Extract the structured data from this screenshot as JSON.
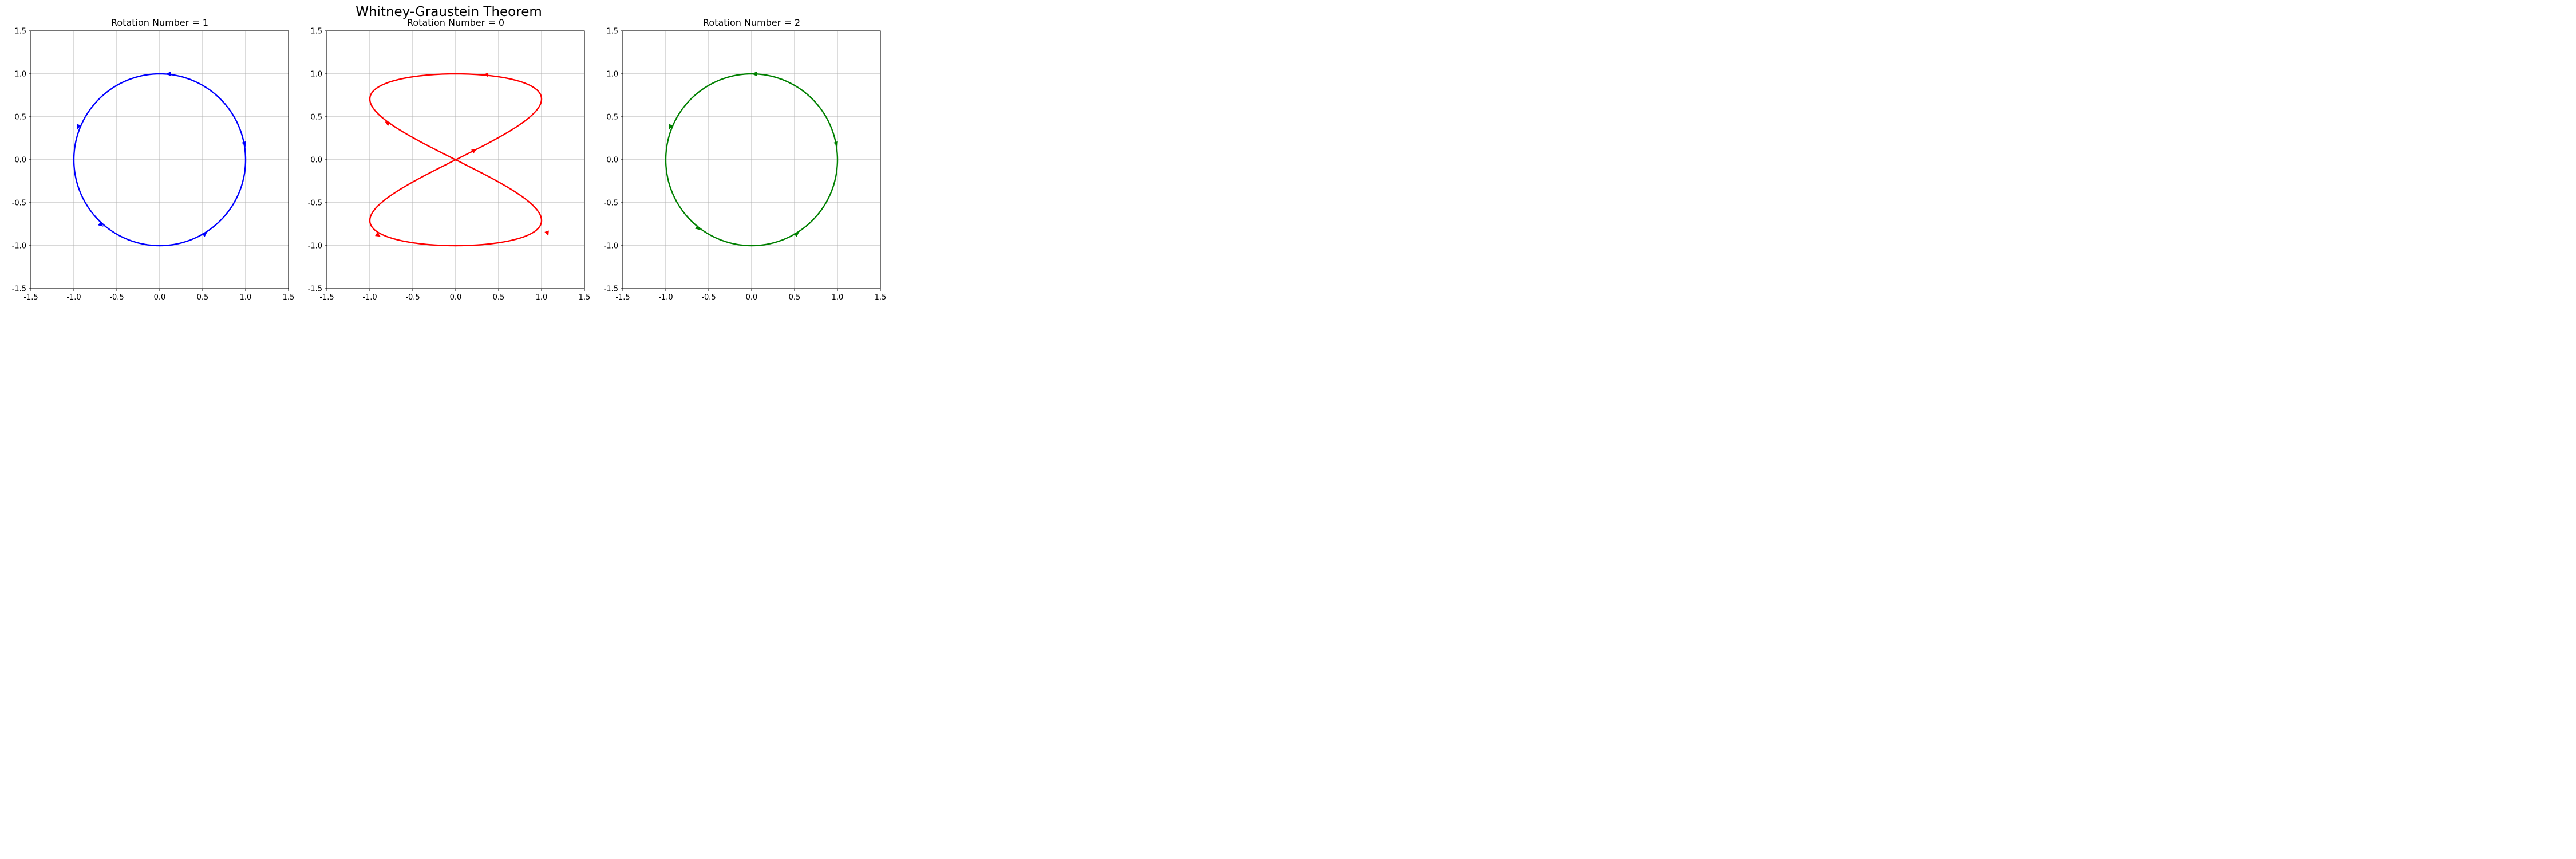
{
  "figure": {
    "title": "Whitney-Graustein Theorem"
  },
  "chart_data": [
    {
      "type": "line",
      "title": "Rotation Number = 1",
      "xlim": [
        -1.5,
        1.5
      ],
      "ylim": [
        -1.5,
        1.5
      ],
      "xticks": [
        "-1.5",
        "-1.0",
        "-0.5",
        "0.0",
        "0.5",
        "1.0",
        "1.5"
      ],
      "yticks": [
        "-1.5",
        "-1.0",
        "-0.5",
        "0.0",
        "0.5",
        "1.0",
        "1.5"
      ],
      "grid": true,
      "color": "#0000ff",
      "curve": "circle",
      "x": [
        1.0,
        0.866,
        0.5,
        0.0,
        -0.5,
        -0.866,
        -1.0,
        -0.866,
        -0.5,
        0.0,
        0.5,
        0.866,
        1.0
      ],
      "y": [
        0.0,
        0.5,
        0.866,
        1.0,
        0.866,
        0.5,
        0.0,
        -0.5,
        -0.866,
        -1.0,
        -0.866,
        -0.5,
        0.0
      ],
      "arrows": [
        {
          "x": 0.99,
          "y": 0.18,
          "dx": 0.02,
          "dy": -0.06
        },
        {
          "x": 0.1,
          "y": 1.0,
          "dx": -0.07,
          "dy": 0.0
        },
        {
          "x": -0.95,
          "y": 0.38,
          "dx": -0.02,
          "dy": -0.06
        },
        {
          "x": -0.68,
          "y": -0.76,
          "dx": 0.05,
          "dy": -0.04
        },
        {
          "x": 0.53,
          "y": -0.86,
          "dx": 0.05,
          "dy": 0.04
        }
      ]
    },
    {
      "type": "line",
      "title": "Rotation Number = 0",
      "xlim": [
        -1.5,
        1.5
      ],
      "ylim": [
        -1.5,
        1.5
      ],
      "xticks": [
        "-1.5",
        "-1.0",
        "-0.5",
        "0.0",
        "0.5",
        "1.0",
        "1.5"
      ],
      "yticks": [
        "-1.5",
        "-1.0",
        "-0.5",
        "0.0",
        "0.5",
        "1.0",
        "1.5"
      ],
      "grid": true,
      "color": "#ff0000",
      "curve": "figure-eight",
      "x": [
        0.0,
        0.707,
        1.0,
        0.707,
        0.0,
        -0.707,
        -1.0,
        -0.707,
        0.0,
        0.707,
        1.0,
        0.707,
        0.0,
        -0.707,
        -1.0,
        -0.707,
        0.0
      ],
      "y": [
        0.0,
        0.5,
        0.707,
        0.924,
        1.0,
        0.924,
        0.707,
        0.5,
        0.0,
        -0.5,
        -0.707,
        -0.924,
        -1.0,
        -0.924,
        -0.707,
        -0.5,
        0.0
      ],
      "arrows": [
        {
          "x": 1.07,
          "y": -0.86,
          "dx": 0.02,
          "dy": -0.06
        },
        {
          "x": 0.35,
          "y": 0.99,
          "dx": -0.07,
          "dy": 0.0
        },
        {
          "x": -0.8,
          "y": 0.43,
          "dx": -0.05,
          "dy": 0.03
        },
        {
          "x": -0.9,
          "y": -0.88,
          "dx": 0.05,
          "dy": -0.03
        },
        {
          "x": 0.22,
          "y": 0.11,
          "dx": 0.05,
          "dy": 0.03
        }
      ]
    },
    {
      "type": "line",
      "title": "Rotation Number = 2",
      "xlim": [
        -1.5,
        1.5
      ],
      "ylim": [
        -1.5,
        1.5
      ],
      "xticks": [
        "-1.5",
        "-1.0",
        "-0.5",
        "0.0",
        "0.5",
        "1.0",
        "1.5"
      ],
      "yticks": [
        "-1.5",
        "-1.0",
        "-0.5",
        "0.0",
        "0.5",
        "1.0",
        "1.5"
      ],
      "grid": true,
      "color": "#008000",
      "curve": "circle",
      "x": [
        1.0,
        0.866,
        0.5,
        0.0,
        -0.5,
        -0.866,
        -1.0,
        -0.866,
        -0.5,
        0.0,
        0.5,
        0.866,
        1.0
      ],
      "y": [
        0.0,
        0.5,
        0.866,
        1.0,
        0.866,
        0.5,
        0.0,
        -0.5,
        -0.866,
        -1.0,
        -0.866,
        -0.5,
        0.0
      ],
      "arrows": [
        {
          "x": 0.99,
          "y": 0.18,
          "dx": 0.02,
          "dy": -0.06
        },
        {
          "x": 0.03,
          "y": 1.0,
          "dx": -0.07,
          "dy": 0.0
        },
        {
          "x": -0.95,
          "y": 0.38,
          "dx": -0.02,
          "dy": -0.06
        },
        {
          "x": -0.62,
          "y": -0.8,
          "dx": 0.05,
          "dy": -0.04
        },
        {
          "x": 0.53,
          "y": -0.86,
          "dx": 0.05,
          "dy": 0.04
        }
      ]
    }
  ]
}
